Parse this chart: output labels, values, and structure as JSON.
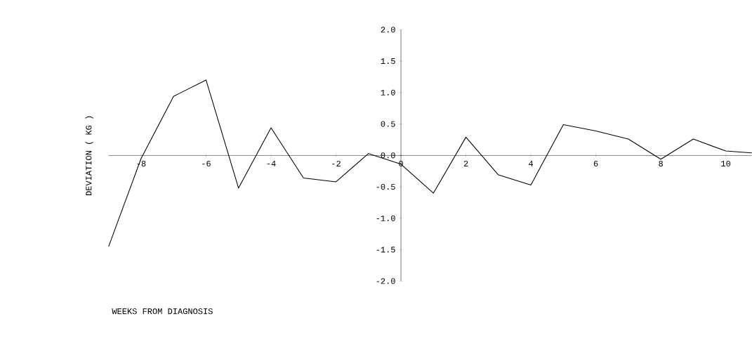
{
  "chart_data": {
    "type": "line",
    "xlabel": "WEEKS FROM DIAGNOSIS",
    "ylabel": "DEVIATION ( KG )",
    "x": [
      -9,
      -8,
      -7,
      -6,
      -5,
      -4,
      -3,
      -2,
      -1,
      0,
      1,
      2,
      3,
      4,
      5,
      6,
      7,
      8,
      9,
      10,
      10.8
    ],
    "values": [
      -1.45,
      -0.05,
      0.94,
      1.2,
      -0.52,
      0.44,
      -0.36,
      -0.42,
      0.03,
      -0.14,
      -0.6,
      0.29,
      -0.31,
      -0.47,
      0.49,
      0.39,
      0.26,
      -0.06,
      0.26,
      0.07,
      0.04
    ],
    "color": "#000000",
    "xlim": [
      -9,
      10.8
    ],
    "ylim": [
      -2,
      2
    ],
    "xticks": [
      -8,
      -6,
      -4,
      -2,
      0,
      2,
      4,
      6,
      8,
      10
    ],
    "yticks": [
      {
        "value": 2,
        "label": "2.0"
      },
      {
        "value": 1.5,
        "label": "1.5"
      },
      {
        "value": 1,
        "label": "1.0"
      },
      {
        "value": 0.5,
        "label": "0.5"
      },
      {
        "value": 0,
        "label": "0.0"
      },
      {
        "value": -0.5,
        "label": "-0.5"
      },
      {
        "value": -1,
        "label": "-1.0"
      },
      {
        "value": -1.5,
        "label": "-1.5"
      },
      {
        "value": -2,
        "label": "-2.0"
      }
    ]
  }
}
